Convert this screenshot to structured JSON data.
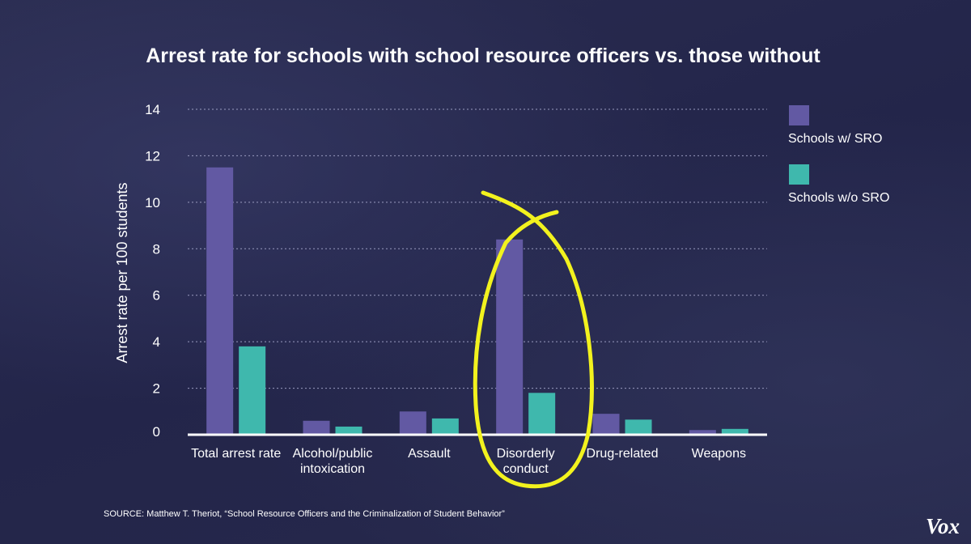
{
  "chart_data": {
    "type": "bar",
    "title": "Arrest rate for schools with school resource officers vs. those without",
    "ylabel": "Arrest rate per 100 students",
    "xlabel": "",
    "ylim": [
      0,
      14
    ],
    "yticks": [
      "0",
      "2",
      "4",
      "6",
      "8",
      "10",
      "12",
      "14"
    ],
    "categories": [
      [
        "Total arrest rate"
      ],
      [
        "Alcohol/public",
        "intoxication"
      ],
      [
        "Assault"
      ],
      [
        "Disorderly",
        "conduct"
      ],
      [
        "Drug-related"
      ],
      [
        "Weapons"
      ]
    ],
    "series": [
      {
        "name": "Schools w/ SRO",
        "color": "#6259a3",
        "values": [
          11.5,
          0.6,
          1.0,
          8.4,
          0.9,
          0.2
        ]
      },
      {
        "name": "Schools w/o SRO",
        "color": "#3fb8ad",
        "values": [
          3.8,
          0.35,
          0.7,
          1.8,
          0.65,
          0.25
        ]
      }
    ],
    "grid": true,
    "legend_position": "top-right",
    "highlight": {
      "category": "Disorderly conduct",
      "color": "#f2f21e",
      "shape": "hand-drawn loop"
    },
    "source": "SOURCE: Matthew T. Theriot, “School Resource Officers and the Criminalization of Student Behavior”"
  },
  "brand": {
    "logo": "Vox"
  }
}
